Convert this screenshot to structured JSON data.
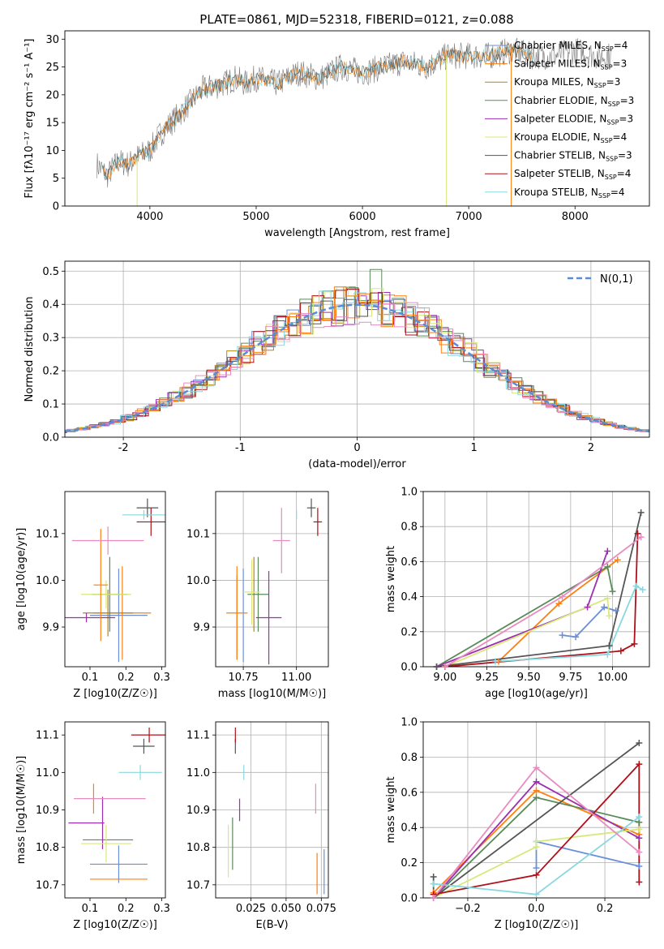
{
  "figure": {
    "title": "PLATE=0861, MJD=52318, FIBERID=0121, z=0.088"
  },
  "model_colors": [
    "#6a8fd8",
    "#ff7f0e",
    "#b8860b",
    "#5a8a5a",
    "#9b30b0",
    "#d8e87a",
    "#555555",
    "#b0101a",
    "#88d8e0",
    "#ff7f0e",
    "#e98ac0"
  ],
  "chart_data": [
    {
      "id": "spectrum",
      "type": "line",
      "title": "PLATE=0861, MJD=52318, FIBERID=0121, z=0.088",
      "xlabel": "wavelength [Angstrom, rest frame]",
      "ylabel": "Flux [fλ10⁻¹⁷ erg cm⁻² s⁻¹ A⁻¹]",
      "xlim": [
        3200,
        8700
      ],
      "ylim": [
        0,
        31.5
      ],
      "xticks": [
        4000,
        5000,
        6000,
        7000,
        8000
      ],
      "yticks": [
        0,
        5,
        10,
        15,
        20,
        25,
        30
      ],
      "legend": "upper right",
      "legend_entries": [
        "Chabrier MILES, N_SSP=4",
        "Salpeter MILES, N_SSP=3",
        "Kroupa MILES, N_SSP=3",
        "Chabrier ELODIE, N_SSP=3",
        "Salpeter ELODIE, N_SSP=3",
        "Kroupa ELODIE, N_SSP=4",
        "Chabrier STELIB, N_SSP=3",
        "Salpeter STELIB, N_SSP=4",
        "Kroupa STELIB, N_SSP=4"
      ],
      "data_series": {
        "name": "",
        "x": [
          3500,
          3600,
          3700,
          3800,
          3900,
          4000,
          4100,
          4200,
          4300,
          4400,
          4500,
          4600,
          4700,
          4800,
          4900,
          5000,
          5200,
          5400,
          5600,
          5800,
          6000,
          6200,
          6400,
          6600,
          6800,
          7000,
          7200,
          7400,
          7600,
          7800,
          8000,
          8200,
          8350
        ],
        "y": [
          7.5,
          5.5,
          8,
          7.5,
          9,
          10,
          13,
          15,
          17,
          19,
          21,
          21.5,
          22,
          23,
          22,
          23,
          22,
          24,
          23,
          25,
          24,
          25,
          26,
          25,
          27,
          27,
          27,
          28,
          27,
          27,
          28,
          27,
          27
        ]
      },
      "model_dropouts": [
        {
          "x": 3880,
          "series": 5
        },
        {
          "x": 6790,
          "series": 5
        },
        {
          "x": 7400,
          "series": 1
        }
      ]
    },
    {
      "id": "residual_histogram",
      "type": "bar",
      "xlabel": "(data-model)/error",
      "ylabel": "Normed distribution",
      "xlim": [
        -2.5,
        2.5
      ],
      "ylim": [
        0,
        0.53
      ],
      "xticks": [
        -2,
        -1,
        0,
        1,
        2
      ],
      "yticks": [
        0.0,
        0.1,
        0.2,
        0.3,
        0.4,
        0.5
      ],
      "grid": true,
      "legend": "upper right",
      "reference_label": "N(0,1)",
      "bin_width": 0.1,
      "series_offsets": [
        0.0,
        0.02,
        -0.015,
        0.01,
        -0.02,
        0.025,
        -0.01,
        0.015,
        -0.025,
        0.005,
        0.018
      ],
      "peak_values": [
        {
          "x": 0.15,
          "value": 0.505
        }
      ]
    },
    {
      "id": "age_vs_Z",
      "type": "scatter",
      "xlabel": "Z [log10(Z/Z☉)]",
      "ylabel": "age  [log10(age/yr)]",
      "xlim": [
        0.03,
        0.31
      ],
      "ylim": [
        9.815,
        10.19
      ],
      "xticks": [
        0.1,
        0.2,
        0.3
      ],
      "yticks": [
        9.9,
        10.0,
        10.1
      ],
      "grid": false,
      "points": [
        {
          "x": 0.18,
          "y": 9.925,
          "xerr": 0.08,
          "yerr": 0.1,
          "series": 0
        },
        {
          "x": 0.19,
          "y": 9.93,
          "xerr": 0.08,
          "yerr": 0.1,
          "series": 1
        },
        {
          "x": 0.15,
          "y": 9.93,
          "xerr": 0.07,
          "yerr": 0.05,
          "series": 2
        },
        {
          "x": 0.155,
          "y": 9.97,
          "xerr": 0.05,
          "yerr": 0.08,
          "series": 3
        },
        {
          "x": 0.09,
          "y": 9.92,
          "xerr": 0.08,
          "yerr": 0.01,
          "series": 4
        },
        {
          "x": 0.145,
          "y": 9.97,
          "xerr": 0.07,
          "yerr": 0.03,
          "series": 5
        },
        {
          "x": 0.26,
          "y": 10.155,
          "xerr": 0.03,
          "yerr": 0.02,
          "series": 6
        },
        {
          "x": 0.27,
          "y": 10.125,
          "xerr": 0.04,
          "yerr": 0.03,
          "series": 7
        },
        {
          "x": 0.25,
          "y": 10.14,
          "xerr": 0.06,
          "yerr": 0.01,
          "series": 8
        },
        {
          "x": 0.13,
          "y": 9.99,
          "xerr": 0.02,
          "yerr": 0.12,
          "series": 9
        },
        {
          "x": 0.15,
          "y": 10.085,
          "xerr": 0.1,
          "yerr": 0.03,
          "series": 10
        }
      ]
    },
    {
      "id": "age_vs_mass",
      "type": "scatter",
      "xlabel": "mass [log10(M/M☉)]",
      "ylabel": "",
      "xlim": [
        10.62,
        11.15
      ],
      "ylim": [
        9.815,
        10.19
      ],
      "xticks": [
        10.75,
        11.0
      ],
      "yticks": [
        9.9,
        10.0,
        10.1
      ],
      "grid": true,
      "points": [
        {
          "x": 10.75,
          "y": 9.925,
          "xerr": 0.0,
          "yerr": 0.1,
          "series": 0
        },
        {
          "x": 10.72,
          "y": 9.93,
          "xerr": 0.05,
          "yerr": 0.1,
          "series": 1
        },
        {
          "x": 10.8,
          "y": 9.97,
          "xerr": 0.0,
          "yerr": 0.08,
          "series": 2
        },
        {
          "x": 10.82,
          "y": 9.97,
          "xerr": 0.05,
          "yerr": 0.08,
          "series": 3
        },
        {
          "x": 10.87,
          "y": 9.92,
          "xerr": 0.06,
          "yerr": 0.1,
          "series": 4
        },
        {
          "x": 10.79,
          "y": 9.975,
          "xerr": 0.04,
          "yerr": 0.07,
          "series": 5
        },
        {
          "x": 11.07,
          "y": 10.155,
          "xerr": 0.02,
          "yerr": 0.02,
          "series": 6
        },
        {
          "x": 11.1,
          "y": 10.125,
          "xerr": 0.02,
          "yerr": 0.03,
          "series": 7
        },
        {
          "x": 11.0,
          "y": 10.14,
          "xerr": 0.0,
          "yerr": 0.01,
          "series": 8
        },
        {
          "x": 10.72,
          "y": 9.92,
          "xerr": 0.0,
          "yerr": 0.09,
          "series": 9
        },
        {
          "x": 10.93,
          "y": 10.085,
          "xerr": 0.04,
          "yerr": 0.07,
          "series": 10
        }
      ]
    },
    {
      "id": "weight_vs_age",
      "type": "line",
      "xlabel": "age  [log10(age/yr)]",
      "ylabel": "mass weight",
      "xlim": [
        8.87,
        10.22
      ],
      "ylim": [
        0,
        1.0
      ],
      "xticks": [
        9.0,
        9.25,
        9.5,
        9.75,
        10.0
      ],
      "yticks": [
        0.0,
        0.2,
        0.4,
        0.6,
        0.8,
        1.0
      ],
      "grid": true,
      "series": [
        {
          "series": 0,
          "x": [
            9.7,
            9.78,
            9.95,
            10.02
          ],
          "y": [
            0.18,
            0.17,
            0.34,
            0.32
          ]
        },
        {
          "series": 1,
          "x": [
            9.32,
            9.68,
            10.03
          ],
          "y": [
            0.03,
            0.36,
            0.61
          ]
        },
        {
          "series": 3,
          "x": [
            8.95,
            9.97,
            10.0
          ],
          "y": [
            0.0,
            0.57,
            0.43
          ]
        },
        {
          "series": 4,
          "x": [
            8.95,
            9.85,
            9.97
          ],
          "y": [
            0.0,
            0.34,
            0.66
          ]
        },
        {
          "series": 5,
          "x": [
            9.0,
            9.97,
            9.98
          ],
          "y": [
            0.0,
            0.39,
            0.29
          ]
        },
        {
          "series": 6,
          "x": [
            8.95,
            9.98,
            10.17
          ],
          "y": [
            0.0,
            0.12,
            0.88
          ]
        },
        {
          "series": 7,
          "x": [
            9.0,
            10.05,
            10.13,
            10.15
          ],
          "y": [
            0.0,
            0.09,
            0.13,
            0.76
          ]
        },
        {
          "series": 8,
          "x": [
            9.3,
            9.97,
            10.14,
            10.18
          ],
          "y": [
            0.03,
            0.07,
            0.46,
            0.44
          ]
        },
        {
          "series": 10,
          "x": [
            9.0,
            9.7,
            10.17
          ],
          "y": [
            0.0,
            0.4,
            0.74
          ]
        }
      ]
    },
    {
      "id": "mass_vs_Z",
      "type": "scatter",
      "xlabel": "Z [log10(Z/Z☉)]",
      "ylabel": "mass [log10(M/M☉)]",
      "xlim": [
        0.03,
        0.31
      ],
      "ylim": [
        10.665,
        11.135
      ],
      "xticks": [
        0.1,
        0.2,
        0.3
      ],
      "yticks": [
        10.7,
        10.8,
        10.9,
        11.0,
        11.1
      ],
      "grid": false,
      "points": [
        {
          "x": 0.18,
          "y": 10.755,
          "xerr": 0.08,
          "yerr": 0.05,
          "series": 0
        },
        {
          "x": 0.18,
          "y": 10.715,
          "xerr": 0.08,
          "yerr": 0.0,
          "series": 1
        },
        {
          "x": 0.15,
          "y": 10.82,
          "xerr": 0.07,
          "yerr": 0.0,
          "series": 3
        },
        {
          "x": 0.09,
          "y": 10.865,
          "xerr": 0.05,
          "yerr": 0.0,
          "series": 4
        },
        {
          "x": 0.135,
          "y": 10.865,
          "xerr": 0.0,
          "yerr": 0.07,
          "series": 4
        },
        {
          "x": 0.145,
          "y": 10.81,
          "xerr": 0.07,
          "yerr": 0.05,
          "series": 5
        },
        {
          "x": 0.25,
          "y": 11.07,
          "xerr": 0.03,
          "yerr": 0.02,
          "series": 6
        },
        {
          "x": 0.265,
          "y": 11.1,
          "xerr": 0.05,
          "yerr": 0.02,
          "series": 7
        },
        {
          "x": 0.24,
          "y": 11.0,
          "xerr": 0.06,
          "yerr": 0.02,
          "series": 8
        },
        {
          "x": 0.11,
          "y": 10.93,
          "xerr": 0.0,
          "yerr": 0.04,
          "series": 9
        },
        {
          "x": 0.155,
          "y": 10.93,
          "xerr": 0.1,
          "yerr": 0.0,
          "series": 10
        }
      ]
    },
    {
      "id": "mass_vs_EBV",
      "type": "scatter",
      "xlabel": "E(B-V)",
      "ylabel": "",
      "xlim": [
        0.0,
        0.08
      ],
      "ylim": [
        10.665,
        11.135
      ],
      "xticks": [
        0.025,
        0.05,
        0.075
      ],
      "yticks": [
        10.7,
        10.8,
        10.9,
        11.0,
        11.1
      ],
      "grid": true,
      "points": [
        {
          "x": 0.077,
          "y": 10.735,
          "xerr": 0.0,
          "yerr": 0.06,
          "series": 0
        },
        {
          "x": 0.072,
          "y": 10.73,
          "xerr": 0.0,
          "yerr": 0.055,
          "series": 1
        },
        {
          "x": 0.012,
          "y": 10.81,
          "xerr": 0.0,
          "yerr": 0.07,
          "series": 3
        },
        {
          "x": 0.017,
          "y": 10.9,
          "xerr": 0.0,
          "yerr": 0.03,
          "series": 4
        },
        {
          "x": 0.009,
          "y": 10.79,
          "xerr": 0.0,
          "yerr": 0.07,
          "series": 5
        },
        {
          "x": 0.014,
          "y": 11.07,
          "xerr": 0.0,
          "yerr": 0.02,
          "series": 6
        },
        {
          "x": 0.014,
          "y": 11.1,
          "xerr": 0.0,
          "yerr": 0.02,
          "series": 7
        },
        {
          "x": 0.02,
          "y": 11.0,
          "xerr": 0.0,
          "yerr": 0.02,
          "series": 8
        },
        {
          "x": 0.071,
          "y": 10.93,
          "xerr": 0.0,
          "yerr": 0.04,
          "series": 10
        }
      ]
    },
    {
      "id": "weight_vs_Z",
      "type": "line",
      "xlabel": "Z [log10(Z/Z☉)]",
      "ylabel": "mass weight",
      "xlim": [
        -0.33,
        0.33
      ],
      "ylim": [
        0,
        1.0
      ],
      "xticks": [
        -0.2,
        0.0,
        0.2
      ],
      "yticks": [
        0.0,
        0.2,
        0.4,
        0.6,
        0.8,
        1.0
      ],
      "grid": true,
      "series": [
        {
          "series": 0,
          "x": [
            0.0,
            0.0,
            0.3
          ],
          "y": [
            0.17,
            0.32,
            0.18
          ]
        },
        {
          "series": 1,
          "x": [
            -0.3,
            0.0,
            0.3
          ],
          "y": [
            0.03,
            0.61,
            0.36
          ]
        },
        {
          "series": 3,
          "x": [
            -0.3,
            0.0,
            0.3
          ],
          "y": [
            0.0,
            0.57,
            0.43
          ]
        },
        {
          "series": 4,
          "x": [
            -0.3,
            0.0,
            0.3
          ],
          "y": [
            0.0,
            0.66,
            0.34
          ]
        },
        {
          "series": 5,
          "x": [
            -0.3,
            0.0,
            0.0,
            0.3
          ],
          "y": [
            0.0,
            0.29,
            0.32,
            0.39
          ]
        },
        {
          "series": 6,
          "x": [
            -0.3,
            -0.3,
            0.3
          ],
          "y": [
            0.12,
            0.0,
            0.88
          ]
        },
        {
          "series": 7,
          "x": [
            -0.3,
            0.0,
            0.3,
            0.3
          ],
          "y": [
            0.02,
            0.13,
            0.76,
            0.09
          ]
        },
        {
          "series": 8,
          "x": [
            -0.3,
            0.0,
            0.3
          ],
          "y": [
            0.08,
            0.02,
            0.46
          ]
        },
        {
          "series": 10,
          "x": [
            -0.3,
            0.0,
            0.3
          ],
          "y": [
            0.0,
            0.74,
            0.26
          ]
        }
      ]
    }
  ]
}
